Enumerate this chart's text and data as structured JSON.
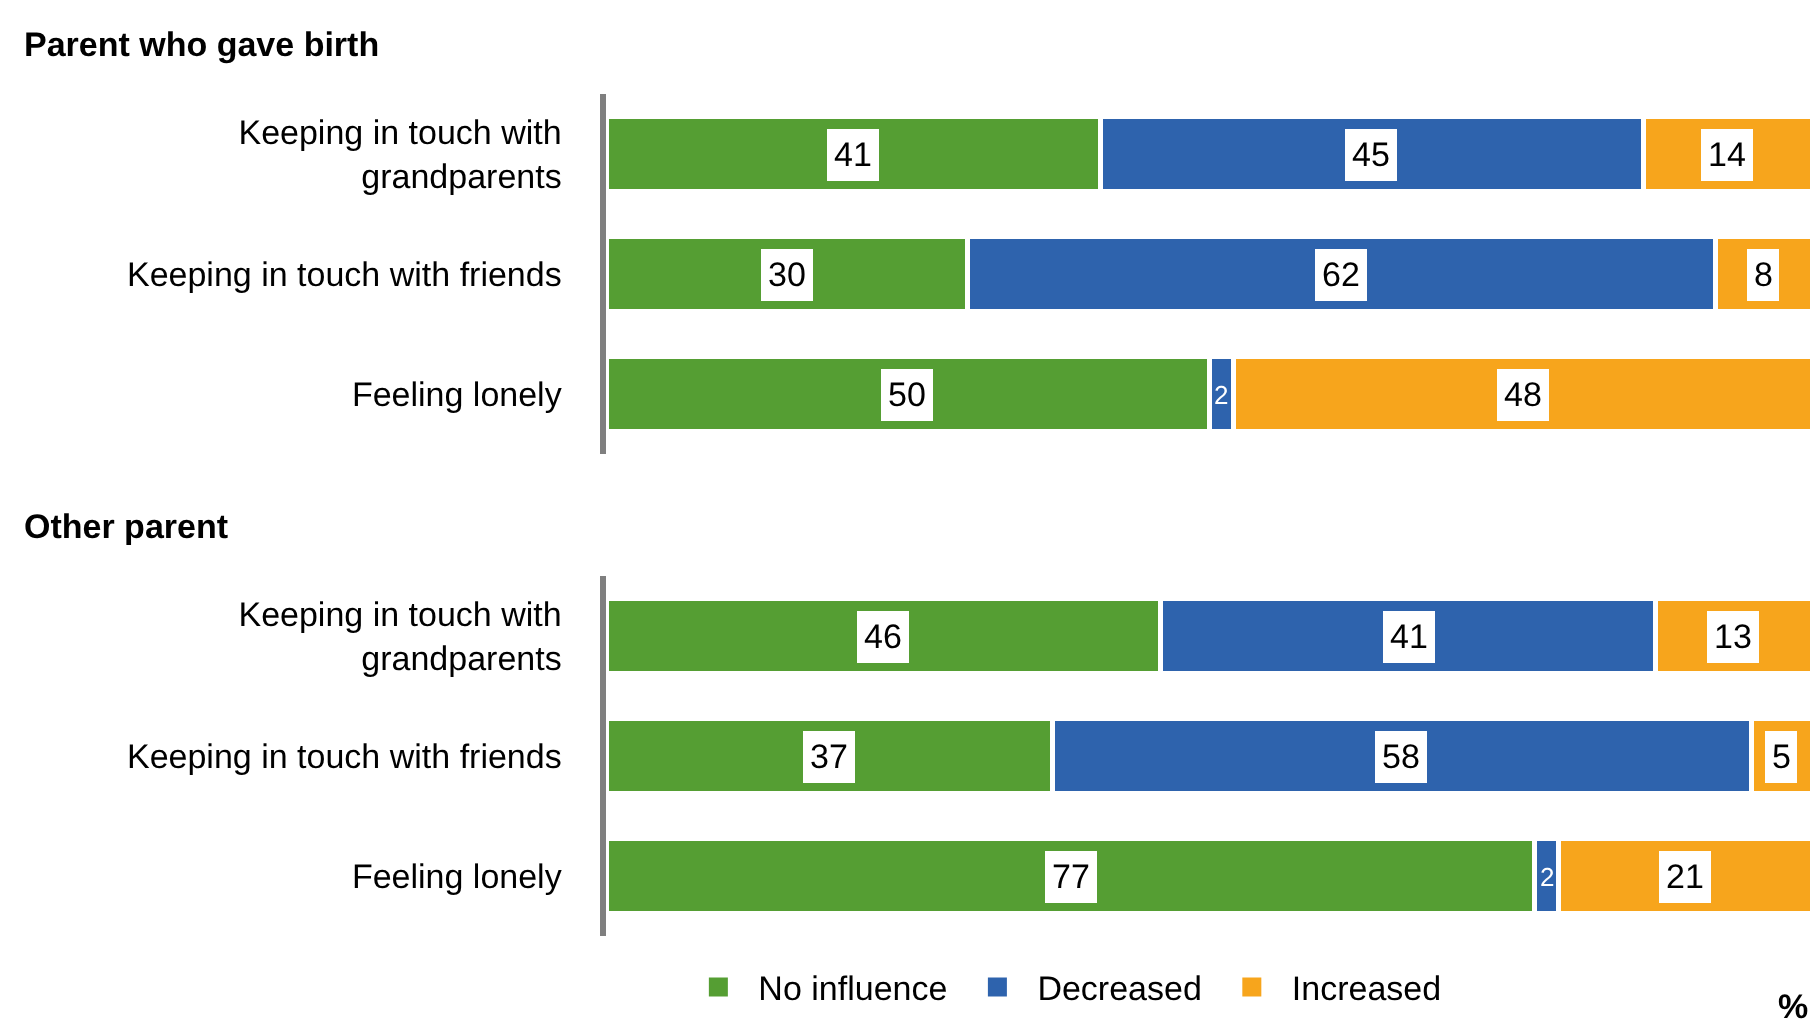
{
  "chart_data": [
    {
      "type": "bar",
      "title": "Parent who gave birth",
      "orientation": "horizontal",
      "stacked": true,
      "data_labels": true,
      "legend": "bottom",
      "categories": [
        "Keeping in touch with\ngrandparents",
        "Keeping in touch with friends",
        "Feeling lonely"
      ],
      "series": [
        {
          "name": "No influence",
          "color": "#559e33",
          "values": [
            41,
            30,
            50
          ]
        },
        {
          "name": "Decreased",
          "color": "#2e63ad",
          "values": [
            45,
            62,
            2
          ]
        },
        {
          "name": "Increased",
          "color": "#f7a51c",
          "values": [
            14,
            8,
            48
          ]
        }
      ]
    },
    {
      "type": "bar",
      "title": "Other parent",
      "orientation": "horizontal",
      "stacked": true,
      "data_labels": true,
      "xlabel": "%",
      "categories": [
        "Keeping in touch with\ngrandparents",
        "Keeping in touch with friends",
        "Feeling lonely"
      ],
      "series": [
        {
          "color": "#559e33",
          "values": [
            46,
            37,
            77
          ]
        },
        {
          "color": "#2e63ad",
          "values": [
            41,
            58,
            2
          ]
        },
        {
          "color": "#f7a51c",
          "values": [
            13,
            5,
            21
          ]
        }
      ]
    }
  ]
}
